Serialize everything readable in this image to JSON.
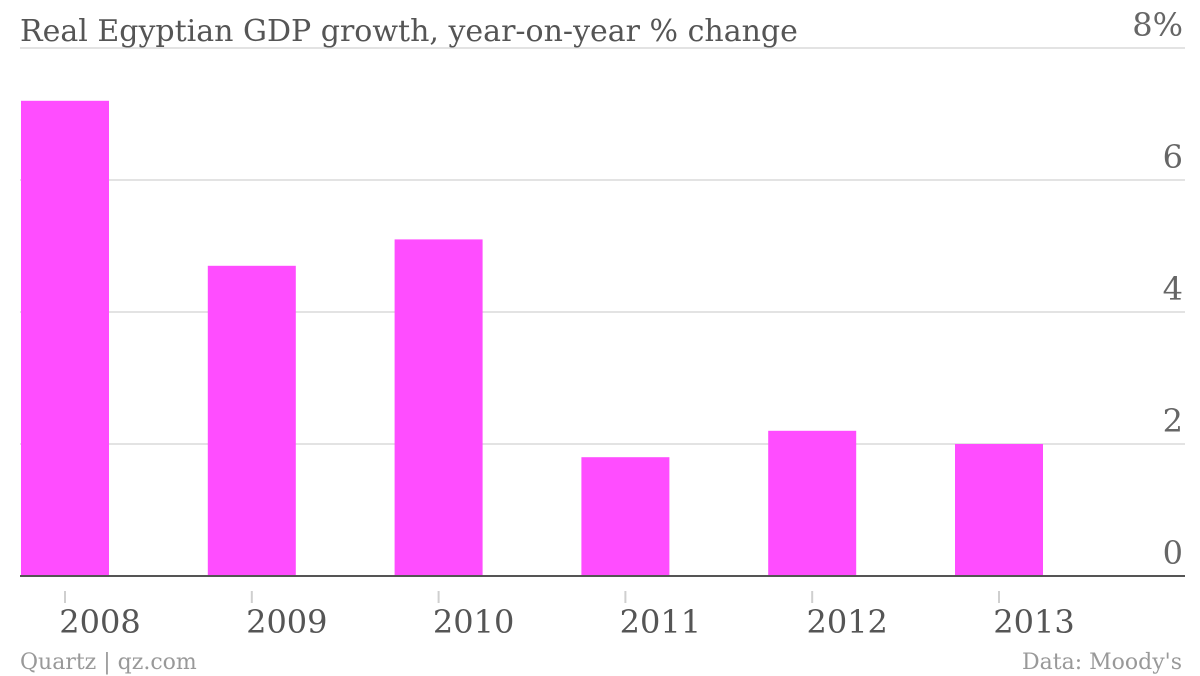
{
  "chart_data": {
    "type": "bar",
    "title": "Real Egyptian GDP growth, year-on-year % change",
    "categories": [
      "2008",
      "2009",
      "2010",
      "2011",
      "2012",
      "2013"
    ],
    "values": [
      7.2,
      4.7,
      5.1,
      1.8,
      2.2,
      2.0
    ],
    "ylim": [
      0,
      8
    ],
    "y_ticks": [
      0,
      2,
      4,
      6,
      8
    ],
    "y_tick_labels": [
      "0",
      "2",
      "4",
      "6",
      "8%"
    ],
    "xlabel": "",
    "ylabel": "",
    "grid": true,
    "y_axis_position": "right",
    "bar_color": "#ff4dff"
  },
  "footer": {
    "source_left": "Quartz | qz.com",
    "source_right": "Data: Moody's"
  }
}
